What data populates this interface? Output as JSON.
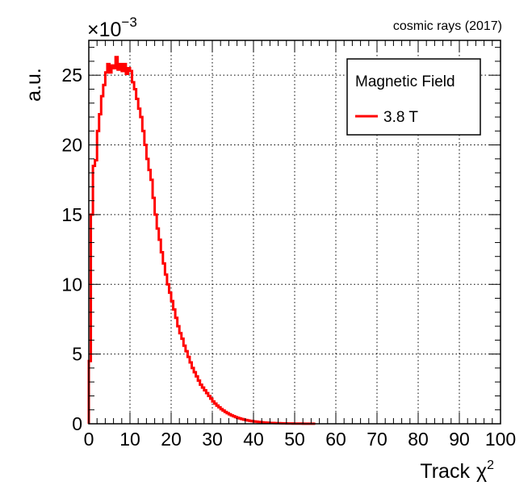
{
  "chart_data": {
    "type": "line",
    "annotation": "cosmic rays (2017)",
    "xlabel": "Track",
    "xlabel_symbol": "χ",
    "xlabel_superscript": "2",
    "ylabel": "a.u.",
    "y_multiplier": "×10",
    "y_multiplier_exponent": "−3",
    "xlim": [
      0,
      100
    ],
    "ylim": [
      0,
      27.5
    ],
    "x_ticks": [
      0,
      10,
      20,
      30,
      40,
      50,
      60,
      70,
      80,
      90,
      100
    ],
    "y_ticks": [
      0,
      5,
      10,
      15,
      20,
      25
    ],
    "x_tick_labels": [
      "0",
      "10",
      "20",
      "30",
      "40",
      "50",
      "60",
      "70",
      "80",
      "90",
      "100"
    ],
    "y_tick_labels": [
      "0",
      "5",
      "10",
      "15",
      "20",
      "25"
    ],
    "grid": true,
    "legend": {
      "title": "Magnetic Field",
      "position": "top-right"
    },
    "series": [
      {
        "name": "3.8 T",
        "color": "#ff0000",
        "bin_width": 0.5,
        "bin_low_edges": [
          0,
          0.5,
          1,
          1.5,
          2,
          2.5,
          3,
          3.5,
          4,
          4.5,
          5,
          5.5,
          6,
          6.5,
          7,
          7.5,
          8,
          8.5,
          9,
          9.5,
          10,
          10.5,
          11,
          11.5,
          12,
          12.5,
          13,
          13.5,
          14,
          14.5,
          15,
          15.5,
          16,
          16.5,
          17,
          17.5,
          18,
          18.5,
          19,
          19.5,
          20,
          20.5,
          21,
          21.5,
          22,
          22.5,
          23,
          23.5,
          24,
          24.5,
          25,
          25.5,
          26,
          26.5,
          27,
          27.5,
          28,
          28.5,
          29,
          29.5,
          30,
          30.5,
          31,
          31.5,
          32,
          32.5,
          33,
          33.5,
          34,
          34.5,
          35,
          35.5,
          36,
          36.5,
          37,
          37.5,
          38,
          38.5,
          39,
          39.5,
          40,
          40.5,
          41,
          41.5,
          42,
          42.5,
          43,
          43.5,
          44,
          44.5,
          45,
          45.5,
          46,
          46.5,
          47,
          47.5,
          48,
          48.5,
          49,
          49.5,
          50,
          50.5,
          51,
          51.5,
          52,
          52.5,
          53,
          53.5,
          54,
          54.5,
          55
        ],
        "values": [
          4.5,
          15.0,
          18.5,
          18.9,
          21.0,
          22.2,
          23.5,
          24.3,
          25.2,
          25.8,
          25.2,
          25.7,
          25.5,
          26.3,
          25.4,
          25.8,
          25.3,
          25.8,
          25.1,
          25.5,
          25.3,
          24.5,
          24.0,
          23.3,
          22.6,
          22.0,
          21.0,
          20.0,
          19.0,
          18.2,
          17.5,
          16.2,
          15.0,
          14.0,
          13.2,
          12.3,
          11.5,
          10.7,
          10.0,
          9.4,
          8.8,
          8.2,
          7.6,
          7.0,
          6.5,
          6.1,
          5.6,
          5.2,
          4.8,
          4.4,
          4.0,
          3.7,
          3.4,
          3.1,
          2.8,
          2.6,
          2.4,
          2.2,
          2.0,
          1.8,
          1.6,
          1.45,
          1.3,
          1.18,
          1.05,
          0.95,
          0.85,
          0.76,
          0.68,
          0.6,
          0.54,
          0.48,
          0.43,
          0.38,
          0.34,
          0.3,
          0.27,
          0.24,
          0.21,
          0.19,
          0.17,
          0.15,
          0.13,
          0.12,
          0.1,
          0.09,
          0.08,
          0.07,
          0.06,
          0.055,
          0.05,
          0.045,
          0.04,
          0.035,
          0.03,
          0.027,
          0.024,
          0.021,
          0.019,
          0.017,
          0.015,
          0.013,
          0.012,
          0.011,
          0.01,
          0.009,
          0.008,
          0.007,
          0.006,
          0.005
        ],
        "tail_value": 0.003
      }
    ]
  }
}
